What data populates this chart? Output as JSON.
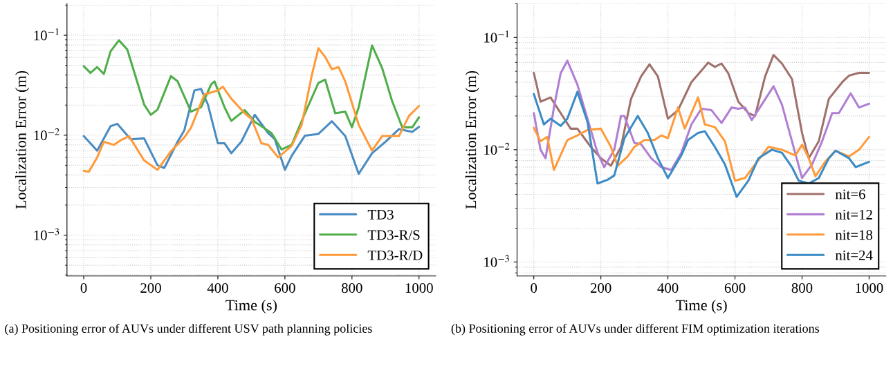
{
  "chart_data": [
    {
      "type": "line",
      "xlabel": "Time (s)",
      "ylabel": "Localization Error (m)",
      "log": "y",
      "grid": true,
      "legend": "bottom right",
      "marker": "none",
      "line_style": "solid",
      "xlim": [
        -50,
        1050
      ],
      "xticks": [
        0,
        200,
        400,
        600,
        800,
        1000
      ],
      "ylim": [
        0.00039,
        0.207
      ],
      "yticks": [
        {
          "value": 0.001,
          "label": "10$^{−3}$"
        },
        {
          "value": 0.01,
          "label": "10$^{−2}$"
        },
        {
          "value": 0.1,
          "label": "10$^{−1}$"
        }
      ],
      "annotations": [
        "(a) Positioning error of AUVs under different USV path planning policies"
      ],
      "series": [
        {
          "name": "TD3",
          "color": "#4a8cc2",
          "x": [
            0,
            40,
            80,
            100,
            140,
            180,
            220,
            240,
            280,
            300,
            330,
            350,
            370,
            400,
            420,
            440,
            470,
            510,
            550,
            570,
            600,
            620,
            660,
            700,
            740,
            780,
            820,
            860,
            900,
            940,
            980,
            1000
          ],
          "values": [
            0.0098,
            0.007,
            0.0123,
            0.013,
            0.0091,
            0.0093,
            0.005,
            0.0047,
            0.0086,
            0.0112,
            0.028,
            0.029,
            0.0204,
            0.0083,
            0.0083,
            0.0066,
            0.0086,
            0.016,
            0.0105,
            0.0091,
            0.0045,
            0.0062,
            0.0099,
            0.0103,
            0.0138,
            0.0098,
            0.0041,
            0.0066,
            0.0086,
            0.0115,
            0.0108,
            0.0121
          ]
        },
        {
          "name": "TD3-R/S",
          "color": "#4fae4a",
          "x": [
            0,
            20,
            40,
            60,
            80,
            105,
            130,
            180,
            200,
            220,
            260,
            280,
            320,
            350,
            380,
            390,
            420,
            440,
            480,
            510,
            530,
            560,
            590,
            620,
            660,
            700,
            720,
            750,
            780,
            800,
            820,
            860,
            890,
            920,
            950,
            980,
            1000
          ],
          "values": [
            0.049,
            0.042,
            0.048,
            0.041,
            0.069,
            0.089,
            0.072,
            0.0203,
            0.016,
            0.018,
            0.039,
            0.0346,
            0.0172,
            0.019,
            0.0323,
            0.0346,
            0.019,
            0.0139,
            0.0178,
            0.0136,
            0.0123,
            0.0105,
            0.0072,
            0.008,
            0.0166,
            0.0334,
            0.036,
            0.0166,
            0.0172,
            0.012,
            0.019,
            0.079,
            0.047,
            0.0218,
            0.012,
            0.012,
            0.0151
          ]
        },
        {
          "name": "TD3-R/D",
          "color": "#ff9a3a",
          "x": [
            0,
            15,
            40,
            60,
            90,
            110,
            135,
            180,
            220,
            260,
            300,
            320,
            360,
            400,
            415,
            440,
            480,
            500,
            530,
            550,
            580,
            620,
            650,
            680,
            700,
            720,
            740,
            760,
            780,
            820,
            860,
            890,
            940,
            970,
            1000
          ],
          "values": [
            0.0044,
            0.0043,
            0.006,
            0.0086,
            0.008,
            0.0089,
            0.0098,
            0.0056,
            0.0045,
            0.0069,
            0.0095,
            0.0119,
            0.0256,
            0.028,
            0.0306,
            0.0232,
            0.0166,
            0.0146,
            0.0083,
            0.008,
            0.006,
            0.0078,
            0.0127,
            0.0395,
            0.0742,
            0.0608,
            0.0457,
            0.048,
            0.0345,
            0.0127,
            0.007,
            0.0098,
            0.0098,
            0.0156,
            0.0196
          ]
        }
      ]
    },
    {
      "type": "line",
      "xlabel": "Time (s)",
      "ylabel": "Localization Error (m)",
      "log": "y",
      "grid": true,
      "legend": "bottom right",
      "marker": "none",
      "line_style": "solid",
      "xlim": [
        -50,
        1050
      ],
      "xticks": [
        0,
        200,
        400,
        600,
        800,
        1000
      ],
      "ylim": [
        0.00075,
        0.2
      ],
      "yticks": [
        {
          "value": 0.001,
          "label": "10$^{−3}$"
        },
        {
          "value": 0.01,
          "label": "10$^{−2}$"
        },
        {
          "value": 0.1,
          "label": "10$^{−1}$"
        }
      ],
      "annotations": [
        "(b) Positioning error of AUVs under different FIM optimization iterations"
      ],
      "series": [
        {
          "name": "nit=6",
          "color": "#a0716b",
          "x": [
            0,
            20,
            50,
            80,
            110,
            130,
            170,
            200,
            230,
            260,
            290,
            320,
            345,
            370,
            400,
            430,
            470,
            500,
            520,
            540,
            560,
            580,
            610,
            640,
            660,
            690,
            715,
            740,
            770,
            800,
            820,
            850,
            880,
            920,
            940,
            970,
            1000
          ],
          "values": [
            0.0484,
            0.0268,
            0.0292,
            0.0212,
            0.0154,
            0.0154,
            0.0106,
            0.0084,
            0.0072,
            0.0106,
            0.0284,
            0.045,
            0.0576,
            0.045,
            0.0189,
            0.0225,
            0.04,
            0.0507,
            0.0596,
            0.0547,
            0.0586,
            0.048,
            0.0268,
            0.0212,
            0.02,
            0.045,
            0.0698,
            0.0586,
            0.0426,
            0.0141,
            0.0084,
            0.0119,
            0.0284,
            0.04,
            0.0457,
            0.0484,
            0.0484
          ]
        },
        {
          "name": "nit=12",
          "color": "#b07fd3",
          "x": [
            0,
            20,
            35,
            60,
            80,
            100,
            130,
            160,
            190,
            210,
            240,
            260,
            270,
            300,
            320,
            350,
            380,
            410,
            440,
            470,
            500,
            530,
            560,
            590,
            610,
            630,
            650,
            680,
            715,
            740,
            770,
            800,
            830,
            860,
            890,
            910,
            945,
            970,
            1000
          ],
          "values": [
            0.0212,
            0.01,
            0.0084,
            0.0238,
            0.0479,
            0.0621,
            0.038,
            0.0189,
            0.0094,
            0.007,
            0.01,
            0.02,
            0.02,
            0.0115,
            0.0112,
            0.0084,
            0.007,
            0.0066,
            0.0094,
            0.0168,
            0.0232,
            0.0225,
            0.0173,
            0.0238,
            0.0232,
            0.0238,
            0.0184,
            0.0253,
            0.0368,
            0.0253,
            0.0119,
            0.0056,
            0.0074,
            0.0119,
            0.0212,
            0.0212,
            0.0318,
            0.0238,
            0.0257
          ]
        },
        {
          "name": "nit=18",
          "color": "#ff9a3a",
          "x": [
            0,
            20,
            40,
            60,
            100,
            130,
            160,
            200,
            230,
            250,
            280,
            300,
            330,
            360,
            380,
            400,
            430,
            450,
            490,
            510,
            540,
            570,
            600,
            630,
            660,
            700,
            740,
            780,
            800,
            820,
            840,
            870,
            900,
            940,
            970,
            1000
          ],
          "values": [
            0.0157,
            0.0119,
            0.013,
            0.0066,
            0.0122,
            0.0134,
            0.015,
            0.0154,
            0.0106,
            0.0072,
            0.0087,
            0.0106,
            0.0122,
            0.0122,
            0.0134,
            0.0127,
            0.0238,
            0.0154,
            0.0292,
            0.0168,
            0.0159,
            0.0119,
            0.0053,
            0.0056,
            0.0074,
            0.0106,
            0.01,
            0.0089,
            0.0111,
            0.0084,
            0.0058,
            0.0079,
            0.0098,
            0.0087,
            0.01,
            0.013
          ]
        },
        {
          "name": "nit=24",
          "color": "#3b8bc6",
          "x": [
            0,
            30,
            50,
            80,
            100,
            130,
            160,
            190,
            220,
            240,
            270,
            310,
            340,
            370,
            400,
            440,
            460,
            490,
            510,
            540,
            570,
            605,
            640,
            670,
            710,
            740,
            770,
            790,
            820,
            850,
            880,
            900,
            940,
            960,
            1000
          ],
          "values": [
            0.0313,
            0.0168,
            0.0189,
            0.0163,
            0.0189,
            0.0328,
            0.0178,
            0.005,
            0.0054,
            0.0059,
            0.0126,
            0.02,
            0.0141,
            0.0084,
            0.0056,
            0.0089,
            0.0122,
            0.0141,
            0.0146,
            0.0106,
            0.0074,
            0.0038,
            0.0053,
            0.0084,
            0.01,
            0.0094,
            0.007,
            0.0053,
            0.005,
            0.0056,
            0.0084,
            0.0098,
            0.0084,
            0.007,
            0.0078
          ]
        }
      ]
    }
  ]
}
